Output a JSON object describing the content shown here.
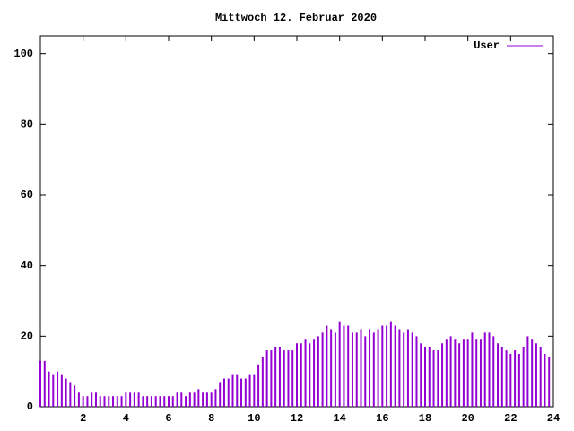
{
  "chart_data": {
    "type": "impulses",
    "title": "Mittwoch 12. Februar 2020",
    "x": [
      0,
      0.2,
      0.4,
      0.6,
      0.8,
      1,
      1.2,
      1.4,
      1.6,
      1.8,
      2,
      2.2,
      2.4,
      2.6,
      2.8,
      3,
      3.2,
      3.4,
      3.6,
      3.8,
      4,
      4.2,
      4.4,
      4.6,
      4.8,
      5,
      5.2,
      5.4,
      5.6,
      5.8,
      6,
      6.2,
      6.4,
      6.6,
      6.8,
      7,
      7.2,
      7.4,
      7.6,
      7.8,
      8,
      8.2,
      8.4,
      8.6,
      8.8,
      9,
      9.2,
      9.4,
      9.6,
      9.8,
      10,
      10.2,
      10.4,
      10.6,
      10.8,
      11,
      11.2,
      11.4,
      11.6,
      11.8,
      12,
      12.2,
      12.4,
      12.6,
      12.8,
      13,
      13.2,
      13.4,
      13.6,
      13.8,
      14,
      14.2,
      14.4,
      14.6,
      14.8,
      15,
      15.2,
      15.4,
      15.6,
      15.8,
      16,
      16.2,
      16.4,
      16.6,
      16.8,
      17,
      17.2,
      17.4,
      17.6,
      17.8,
      18,
      18.2,
      18.4,
      18.6,
      18.8,
      19,
      19.2,
      19.4,
      19.6,
      19.8,
      20,
      20.2,
      20.4,
      20.6,
      20.8,
      21,
      21.2,
      21.4,
      21.6,
      21.8,
      22,
      22.2,
      22.4,
      22.6,
      22.8,
      23,
      23.2,
      23.4,
      23.6,
      23.8
    ],
    "series": [
      {
        "name": "User",
        "color": "#9400d3",
        "values": [
          13,
          13,
          10,
          9,
          10,
          9,
          8,
          7,
          6,
          4,
          3,
          3,
          4,
          4,
          3,
          3,
          3,
          3,
          3,
          3,
          4,
          4,
          4,
          4,
          3,
          3,
          3,
          3,
          3,
          3,
          3,
          3,
          4,
          4,
          3,
          4,
          4,
          5,
          4,
          4,
          4,
          5,
          7,
          8,
          8,
          9,
          9,
          8,
          8,
          9,
          9,
          12,
          14,
          16,
          16,
          17,
          17,
          16,
          16,
          16,
          18,
          18,
          19,
          18,
          19,
          20,
          21,
          23,
          22,
          21,
          24,
          23,
          23,
          21,
          21,
          22,
          20,
          22,
          21,
          22,
          23,
          23,
          24,
          23,
          22,
          21,
          22,
          21,
          20,
          18,
          17,
          17,
          16,
          16,
          18,
          19,
          20,
          19,
          18,
          19,
          19,
          21,
          19,
          19,
          21,
          21,
          20,
          18,
          17,
          16,
          15,
          16,
          15,
          17,
          20,
          19,
          18,
          17,
          15,
          14
        ]
      }
    ],
    "xlim": [
      0,
      24
    ],
    "xticks": [
      2,
      4,
      6,
      8,
      10,
      12,
      14,
      16,
      18,
      20,
      22,
      24
    ],
    "ylim": [
      0,
      105
    ],
    "yticks": [
      0,
      20,
      40,
      60,
      80,
      100
    ],
    "legend": "top-right"
  }
}
